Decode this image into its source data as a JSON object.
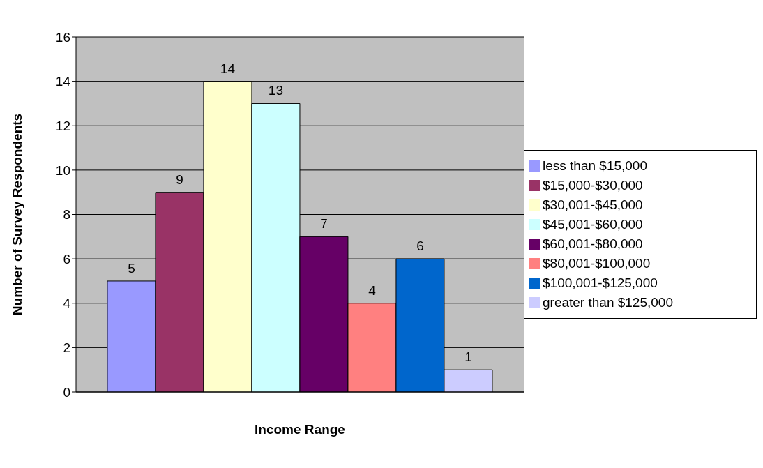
{
  "chart_data": {
    "type": "bar",
    "xlabel": "Income Range",
    "ylabel": "Number of Survey Respondents",
    "categories": [
      null
    ],
    "series": [
      {
        "name": "less than $15,000",
        "color": "#9999ff",
        "values": [
          5
        ]
      },
      {
        "name": "$15,000-$30,000",
        "color": "#993366",
        "values": [
          9
        ]
      },
      {
        "name": "$30,001-$45,000",
        "color": "#ffffcc",
        "values": [
          14
        ]
      },
      {
        "name": "$45,001-$60,000",
        "color": "#ccffff",
        "values": [
          13
        ]
      },
      {
        "name": "$60,001-$80,000",
        "color": "#660066",
        "values": [
          7
        ]
      },
      {
        "name": "$80,001-$100,000",
        "color": "#ff8080",
        "values": [
          4
        ]
      },
      {
        "name": "$100,001-$125,000",
        "color": "#0066cc",
        "values": [
          6
        ]
      },
      {
        "name": "greater than $125,000",
        "color": "#ccccff",
        "values": [
          1
        ]
      }
    ],
    "ylim": [
      0,
      16
    ],
    "yticks": [
      0,
      2,
      4,
      6,
      8,
      10,
      12,
      14,
      16
    ],
    "grid": "y",
    "legend": "right",
    "data_labels": true
  }
}
